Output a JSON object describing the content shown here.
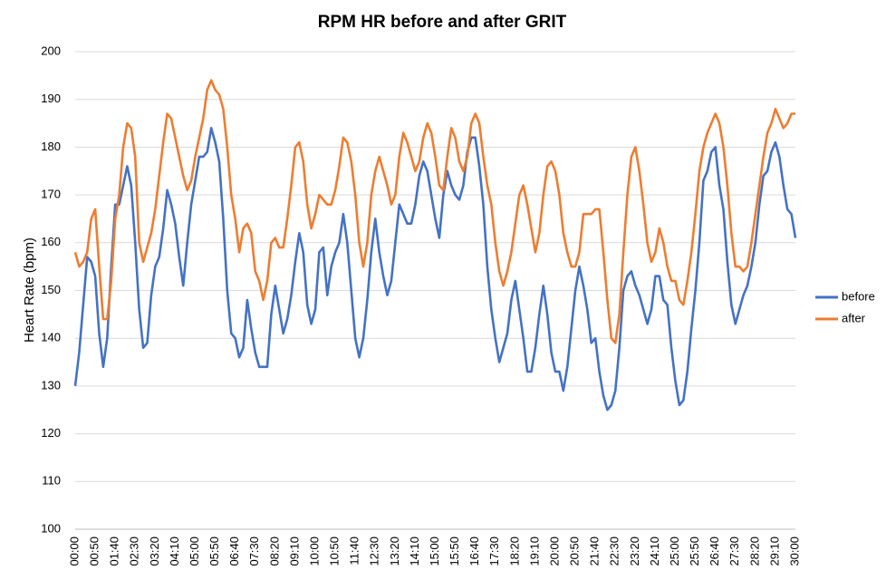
{
  "chart_data": {
    "type": "line",
    "title": "RPM HR before and after GRIT",
    "y_label": "Heart Rate (bpm)",
    "categories": [
      "00:00",
      null,
      null,
      null,
      null,
      "00:50",
      null,
      null,
      null,
      null,
      "01:40",
      null,
      null,
      null,
      null,
      "02:30",
      null,
      null,
      null,
      null,
      "03:20",
      null,
      null,
      null,
      null,
      "04:10",
      null,
      null,
      null,
      null,
      "05:00",
      null,
      null,
      null,
      null,
      "05:50",
      null,
      null,
      null,
      null,
      "06:40",
      null,
      null,
      null,
      null,
      "07:30",
      null,
      null,
      null,
      null,
      "08:20",
      null,
      null,
      null,
      null,
      "09:10",
      null,
      null,
      null,
      null,
      "10:00",
      null,
      null,
      null,
      null,
      "10:50",
      null,
      null,
      null,
      null,
      "11:40",
      null,
      null,
      null,
      null,
      "12:30",
      null,
      null,
      null,
      null,
      "13:20",
      null,
      null,
      null,
      null,
      "14:10",
      null,
      null,
      null,
      null,
      "15:00",
      null,
      null,
      null,
      null,
      "15:50",
      null,
      null,
      null,
      null,
      "16:40",
      null,
      null,
      null,
      null,
      "17:30",
      null,
      null,
      null,
      null,
      "18:20",
      null,
      null,
      null,
      null,
      "19:10",
      null,
      null,
      null,
      null,
      "20:00",
      null,
      null,
      null,
      null,
      "20:50",
      null,
      null,
      null,
      null,
      "21:40",
      null,
      null,
      null,
      null,
      "22:30",
      null,
      null,
      null,
      null,
      "23:20",
      null,
      null,
      null,
      null,
      "24:10",
      null,
      null,
      null,
      null,
      "25:00",
      null,
      null,
      null,
      null,
      "25:50",
      null,
      null,
      null,
      null,
      "26:40",
      null,
      null,
      null,
      null,
      "27:30",
      null,
      null,
      null,
      null,
      "28:20",
      null,
      null,
      null,
      null,
      "29:10",
      null,
      null,
      null,
      null,
      "30:00"
    ],
    "series": [
      {
        "name": "before",
        "color": "#4472c4",
        "values": [
          130,
          137,
          147,
          157,
          156,
          153,
          141,
          134,
          140,
          155,
          168,
          168,
          172,
          176,
          172,
          160,
          146,
          138,
          139,
          149,
          155,
          157,
          163,
          171,
          168,
          164,
          157,
          151,
          160,
          168,
          173,
          178,
          178,
          179,
          184,
          181,
          177,
          165,
          150,
          141,
          140,
          136,
          138,
          148,
          142,
          137,
          134,
          134,
          134,
          145,
          151,
          146,
          141,
          144,
          149,
          156,
          162,
          158,
          147,
          143,
          146,
          158,
          159,
          149,
          155,
          158,
          160,
          166,
          160,
          150,
          140,
          136,
          140,
          148,
          158,
          165,
          158,
          153,
          149,
          152,
          160,
          168,
          166,
          164,
          164,
          168,
          174,
          177,
          175,
          170,
          165,
          161,
          170,
          175,
          172,
          170,
          169,
          172,
          179,
          182,
          182,
          176,
          168,
          155,
          146,
          140,
          135,
          138,
          141,
          148,
          152,
          146,
          140,
          133,
          133,
          138,
          145,
          151,
          145,
          137,
          133,
          133,
          129,
          134,
          142,
          150,
          155,
          151,
          146,
          139,
          140,
          133,
          128,
          125,
          126,
          129,
          138,
          150,
          153,
          154,
          151,
          149,
          146,
          143,
          146,
          153,
          153,
          148,
          147,
          138,
          131,
          126,
          127,
          133,
          142,
          150,
          160,
          173,
          175,
          179,
          180,
          172,
          167,
          156,
          147,
          143,
          146,
          149,
          151,
          155,
          160,
          168,
          174,
          175,
          179,
          181,
          178,
          172,
          167,
          166,
          161
        ]
      },
      {
        "name": "after",
        "color": "#ed7d31",
        "values": [
          158,
          155,
          156,
          158,
          165,
          167,
          155,
          144,
          144,
          152,
          165,
          170,
          180,
          185,
          184,
          178,
          160,
          156,
          159,
          162,
          167,
          174,
          181,
          187,
          186,
          182,
          178,
          174,
          171,
          173,
          178,
          182,
          186,
          192,
          194,
          192,
          191,
          188,
          180,
          170,
          165,
          158,
          163,
          164,
          162,
          154,
          152,
          148,
          152,
          160,
          161,
          159,
          159,
          165,
          172,
          180,
          181,
          177,
          168,
          163,
          166,
          170,
          169,
          168,
          168,
          171,
          176,
          182,
          181,
          177,
          170,
          160,
          155,
          160,
          170,
          175,
          178,
          175,
          172,
          168,
          170,
          178,
          183,
          181,
          178,
          175,
          177,
          182,
          185,
          183,
          178,
          172,
          171,
          178,
          184,
          182,
          177,
          175,
          178,
          185,
          187,
          185,
          178,
          172,
          168,
          160,
          154,
          151,
          154,
          158,
          164,
          170,
          172,
          168,
          163,
          158,
          162,
          170,
          176,
          177,
          175,
          170,
          162,
          158,
          155,
          155,
          158,
          166,
          166,
          166,
          167,
          167,
          158,
          148,
          140,
          139,
          145,
          158,
          170,
          178,
          180,
          175,
          168,
          160,
          156,
          158,
          163,
          160,
          155,
          152,
          152,
          148,
          147,
          152,
          158,
          166,
          175,
          180,
          183,
          185,
          187,
          185,
          180,
          172,
          162,
          155,
          155,
          154,
          155,
          160,
          166,
          172,
          178,
          183,
          185,
          188,
          186,
          184,
          185,
          187,
          187
        ]
      }
    ],
    "ylim": [
      100,
      200
    ],
    "yticks": [
      100,
      110,
      120,
      130,
      140,
      150,
      160,
      170,
      180,
      190,
      200
    ],
    "grid": true,
    "legend": "right"
  }
}
